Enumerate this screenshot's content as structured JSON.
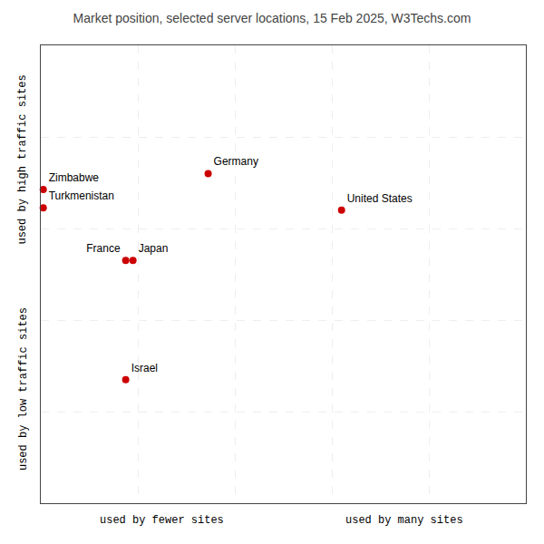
{
  "chart_data": {
    "type": "scatter",
    "title": "Market position, selected server locations, 15 Feb 2025, W3Techs.com",
    "xlabel_left": "used by fewer sites",
    "xlabel_right": "used by many sites",
    "ylabel_top": "used by high traffic sites",
    "ylabel_bottom": "used by low traffic sites",
    "labels": [
      "Zimbabwe",
      "Turkmenistan",
      "Germany",
      "United States",
      "France",
      "Japan",
      "Israel"
    ],
    "x": [
      0.005,
      0.005,
      0.345,
      0.62,
      0.175,
      0.19,
      0.175
    ],
    "values": [
      0.685,
      0.645,
      0.72,
      0.64,
      0.53,
      0.53,
      0.27
    ],
    "color": "#cc0000",
    "xlim": [
      0,
      1
    ],
    "ylim": [
      0,
      1
    ],
    "xticks": [
      0,
      0.2,
      0.4,
      0.6,
      0.8,
      1
    ],
    "yticks": [
      0,
      0.2,
      0.4,
      0.6,
      0.8,
      1
    ],
    "grid": true,
    "tick_labels": false
  }
}
